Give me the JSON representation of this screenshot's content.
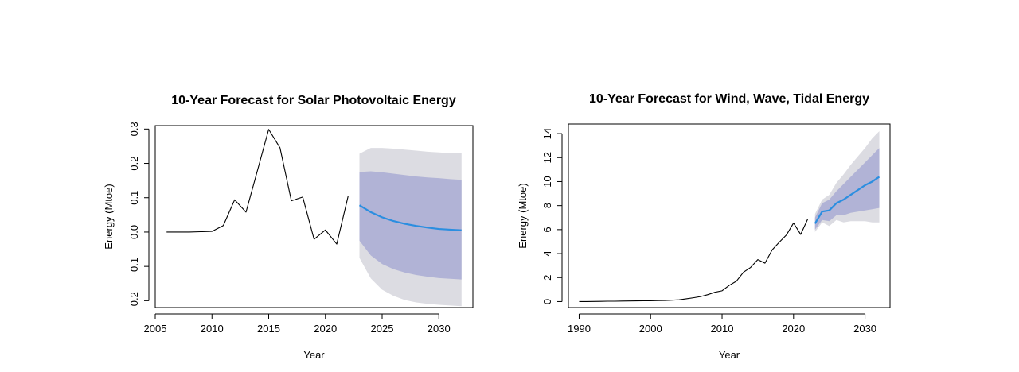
{
  "chart_data": [
    {
      "type": "line",
      "title": "10-Year Forecast for Solar Photovoltaic Energy",
      "xlabel": "Year",
      "ylabel": "Energy (Mtoe)",
      "xlim": [
        2005,
        2033
      ],
      "ylim": [
        -0.22,
        0.31
      ],
      "x_ticks": [
        2005,
        2010,
        2015,
        2020,
        2025,
        2030
      ],
      "y_ticks": [
        -0.2,
        -0.1,
        0.0,
        0.1,
        0.2,
        0.3
      ],
      "y_tick_labels": [
        "-0.2",
        "-0.1",
        "0.0",
        "0.1",
        "0.2",
        "0.3"
      ],
      "grid": false,
      "colors": {
        "history": "#000000",
        "forecast": "#2b8ee0",
        "band95": "#dcdce2",
        "band80": "#b1b3d6"
      },
      "history": {
        "x": [
          2006,
          2007,
          2008,
          2009,
          2010,
          2011,
          2012,
          2013,
          2014,
          2015,
          2016,
          2017,
          2018,
          2019,
          2020,
          2021,
          2022
        ],
        "y": [
          0.0,
          0.0,
          0.0,
          0.001,
          0.002,
          0.019,
          0.094,
          0.058,
          0.178,
          0.299,
          0.245,
          0.091,
          0.102,
          -0.021,
          0.006,
          -0.035,
          0.104
        ]
      },
      "forecast": {
        "x": [
          2023,
          2024,
          2025,
          2026,
          2027,
          2028,
          2029,
          2030,
          2031,
          2032
        ],
        "mean": [
          0.078,
          0.058,
          0.043,
          0.032,
          0.024,
          0.018,
          0.013,
          0.009,
          0.007,
          0.005
        ],
        "lo80": [
          -0.025,
          -0.068,
          -0.093,
          -0.108,
          -0.118,
          -0.125,
          -0.13,
          -0.134,
          -0.136,
          -0.138
        ],
        "hi80": [
          0.175,
          0.177,
          0.174,
          0.17,
          0.166,
          0.162,
          0.159,
          0.157,
          0.154,
          0.152
        ],
        "lo95": [
          -0.075,
          -0.135,
          -0.168,
          -0.186,
          -0.198,
          -0.205,
          -0.209,
          -0.212,
          -0.214,
          -0.216
        ],
        "hi95": [
          0.228,
          0.245,
          0.245,
          0.243,
          0.24,
          0.237,
          0.234,
          0.232,
          0.23,
          0.229
        ]
      }
    },
    {
      "type": "line",
      "title": "10-Year Forecast for Wind, Wave, Tidal Energy",
      "xlabel": "Year",
      "ylabel": "Energy (Mtoe)",
      "xlim": [
        1988.5,
        2033.5
      ],
      "ylim": [
        -0.5,
        14.8
      ],
      "x_ticks": [
        1990,
        2000,
        2010,
        2020,
        2030
      ],
      "y_ticks": [
        0,
        2,
        4,
        6,
        8,
        10,
        12,
        14
      ],
      "y_tick_labels": [
        "0",
        "2",
        "4",
        "6",
        "8",
        "10",
        "12",
        "14"
      ],
      "grid": false,
      "colors": {
        "history": "#000000",
        "forecast": "#2b8ee0",
        "band95": "#dcdce2",
        "band80": "#b1b3d6"
      },
      "history": {
        "x": [
          1990,
          1991,
          1992,
          1993,
          1994,
          1995,
          1996,
          1997,
          1998,
          1999,
          2000,
          2001,
          2002,
          2003,
          2004,
          2005,
          2006,
          2007,
          2008,
          2009,
          2010,
          2011,
          2012,
          2013,
          2014,
          2015,
          2016,
          2017,
          2018,
          2019,
          2020,
          2021,
          2022
        ],
        "y": [
          0.0,
          0.0,
          0.01,
          0.02,
          0.03,
          0.03,
          0.04,
          0.05,
          0.06,
          0.07,
          0.07,
          0.08,
          0.09,
          0.12,
          0.15,
          0.23,
          0.32,
          0.42,
          0.58,
          0.78,
          0.9,
          1.35,
          1.7,
          2.45,
          2.85,
          3.5,
          3.2,
          4.3,
          4.95,
          5.55,
          6.55,
          5.6,
          6.9
        ]
      },
      "forecast": {
        "x": [
          2023,
          2024,
          2025,
          2026,
          2027,
          2028,
          2029,
          2030,
          2031,
          2032
        ],
        "mean": [
          6.5,
          7.5,
          7.6,
          8.2,
          8.5,
          8.9,
          9.3,
          9.7,
          10.0,
          10.4
        ],
        "lo80": [
          6.0,
          6.8,
          6.7,
          7.2,
          7.2,
          7.4,
          7.5,
          7.6,
          7.7,
          7.8
        ],
        "hi80": [
          7.0,
          8.2,
          8.5,
          9.2,
          9.8,
          10.4,
          11.0,
          11.6,
          12.2,
          12.8
        ],
        "lo95": [
          5.8,
          6.6,
          6.3,
          6.8,
          6.6,
          6.7,
          6.7,
          6.7,
          6.6,
          6.6
        ],
        "hi95": [
          7.3,
          8.5,
          8.9,
          9.9,
          10.6,
          11.4,
          12.1,
          12.8,
          13.6,
          14.2
        ]
      }
    }
  ]
}
